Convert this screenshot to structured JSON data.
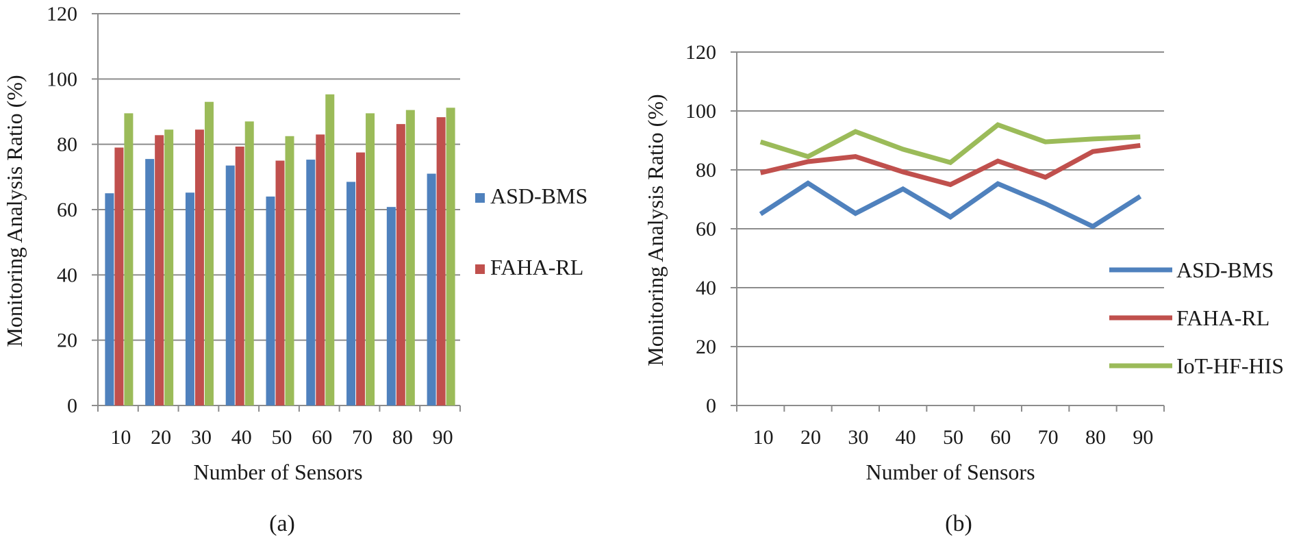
{
  "chart_data": [
    {
      "type": "bar",
      "caption": "(a)",
      "xlabel": "Number of Sensors",
      "ylabel": "Monitoring Analysis Ratio (%)",
      "ylim": [
        0,
        120
      ],
      "yticks": [
        "0",
        "20",
        "40",
        "60",
        "80",
        "100",
        "120"
      ],
      "categories": [
        "10",
        "20",
        "30",
        "40",
        "50",
        "60",
        "70",
        "80",
        "90"
      ],
      "grid": true,
      "legend_position": "right",
      "legend_entries": [
        "ASD-BMS",
        "FAHA-RL"
      ],
      "series": [
        {
          "name": "ASD-BMS",
          "color": "#4f81bd",
          "values": [
            65,
            75.5,
            65.2,
            73.5,
            64,
            75.3,
            68.5,
            60.8,
            71
          ]
        },
        {
          "name": "FAHA-RL",
          "color": "#c0504d",
          "values": [
            79,
            82.8,
            84.5,
            79.3,
            75,
            83,
            77.5,
            86.2,
            88.3
          ]
        },
        {
          "name": "",
          "color": "#9bbb59",
          "values": [
            89.5,
            84.5,
            93,
            87,
            82.5,
            95.3,
            89.5,
            90.5,
            91.2
          ]
        }
      ]
    },
    {
      "type": "line",
      "caption": "(b)",
      "xlabel": "Number of Sensors",
      "ylabel": "Monitoring Analysis Ratio (%)",
      "ylim": [
        0,
        120
      ],
      "yticks": [
        "0",
        "20",
        "40",
        "60",
        "80",
        "100",
        "120"
      ],
      "categories": [
        "10",
        "20",
        "30",
        "40",
        "50",
        "60",
        "70",
        "80",
        "90"
      ],
      "grid": true,
      "legend_position": "bottom-right",
      "series": [
        {
          "name": "ASD-BMS",
          "color": "#4f81bd",
          "values": [
            65,
            75.5,
            65.2,
            73.5,
            64,
            75.3,
            68.5,
            60.8,
            71
          ]
        },
        {
          "name": "FAHA-RL",
          "color": "#c0504d",
          "values": [
            79,
            82.8,
            84.5,
            79.3,
            75,
            83,
            77.5,
            86.2,
            88.3
          ]
        },
        {
          "name": "IoT-HF-HIS",
          "color": "#9bbb59",
          "values": [
            89.5,
            84.5,
            93,
            87,
            82.5,
            95.3,
            89.5,
            90.5,
            91.2
          ]
        }
      ]
    }
  ]
}
